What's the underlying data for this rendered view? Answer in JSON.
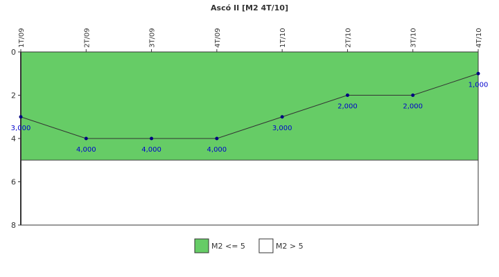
{
  "chart_data": {
    "type": "line",
    "title": "Ascó II [M2 4T/10]",
    "categories": [
      "1T/09",
      "2T/09",
      "3T/09",
      "4T/09",
      "1T/10",
      "2T/10",
      "3T/10",
      "4T/10"
    ],
    "values": [
      3,
      4,
      4,
      4,
      3,
      2,
      2,
      1
    ],
    "value_labels": [
      "3,000",
      "4,000",
      "4,000",
      "4,000",
      "3,000",
      "2,000",
      "2,000",
      "1,000"
    ],
    "line_color": "#333333",
    "point_color": "#000080",
    "ylim": [
      0,
      8
    ],
    "yticks": [
      0,
      2,
      4,
      6,
      8
    ],
    "y_inverted": true,
    "bands": [
      {
        "name": "M2 <= 5",
        "color": "#66cc66",
        "range": [
          0,
          5
        ]
      },
      {
        "name": "M2 > 5",
        "color": "#ffffff",
        "range": [
          5,
          8
        ]
      }
    ]
  }
}
